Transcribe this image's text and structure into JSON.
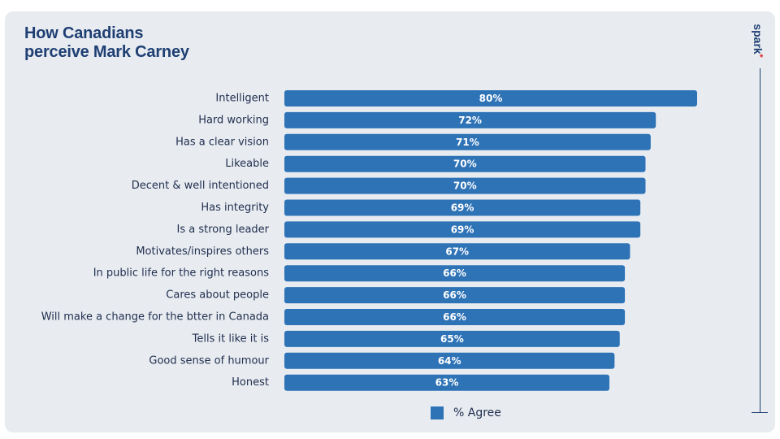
{
  "title": {
    "line1": "How Canadians",
    "line2": "perceive Mark Carney"
  },
  "brand": {
    "name": "spark",
    "accent_color": "#e0262b"
  },
  "colors": {
    "bar": "#2f73b7",
    "title": "#1f3f73",
    "background": "#e8ecf1"
  },
  "legend": {
    "label": "% Agree",
    "placement": "bottom-center"
  },
  "chart_data": {
    "type": "bar",
    "orientation": "horizontal",
    "title": "How Canadians perceive Mark Carney",
    "categories": [
      "Intelligent",
      "Hard working",
      "Has a clear vision",
      "Likeable",
      "Decent & well intentioned",
      "Has integrity",
      "Is a strong leader",
      "Motivates/inspires others",
      "In public life for the right reasons",
      "Cares about people",
      "Will make a change for the btter in Canada",
      "Tells it like it is",
      "Good sense of humour",
      "Honest"
    ],
    "series": [
      {
        "name": "% Agree",
        "values": [
          80,
          72,
          71,
          70,
          70,
          69,
          69,
          67,
          66,
          66,
          66,
          65,
          64,
          63
        ],
        "labels": [
          "80%",
          "72%",
          "71%",
          "70%",
          "70%",
          "69%",
          "69%",
          "67%",
          "66%",
          "66%",
          "66%",
          "65%",
          "64%",
          "63%"
        ]
      }
    ],
    "xlim": [
      0,
      100
    ],
    "grid": false,
    "legend": "bottom-center"
  }
}
